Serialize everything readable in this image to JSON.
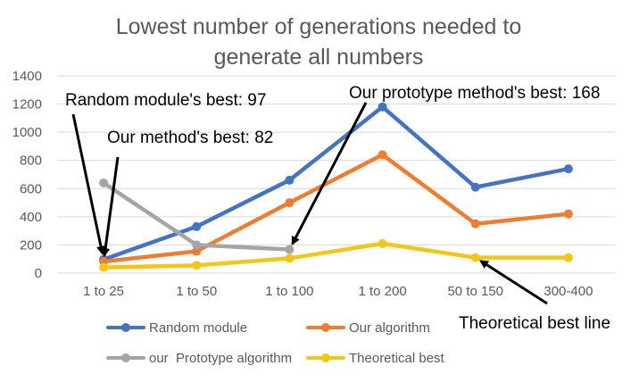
{
  "chart_data": {
    "type": "line",
    "title_lines": [
      "Lowest number of generations needed to",
      "generate all numbers"
    ],
    "categories": [
      "1 to 25",
      "1 to 50",
      "1 to 100",
      "1 to 200",
      "50 to 150",
      "300-400"
    ],
    "ylim": [
      0,
      1400
    ],
    "yticks": [
      0,
      200,
      400,
      600,
      800,
      1000,
      1200,
      1400
    ],
    "grid": true,
    "legend_position": "bottom",
    "series": [
      {
        "name": "Random module",
        "color": "#4472C4",
        "values": [
          97,
          330,
          660,
          1180,
          610,
          740
        ]
      },
      {
        "name": "Our algorithm",
        "color": "#ED7D31",
        "values": [
          82,
          155,
          500,
          840,
          350,
          420
        ]
      },
      {
        "name": "our  Prototype algorithm",
        "color": "#A5A5A5",
        "values": [
          640,
          200,
          168,
          null,
          null,
          null
        ]
      },
      {
        "name": "Theoretical best",
        "color": "#F5C518",
        "values": [
          40,
          55,
          105,
          210,
          110,
          110
        ]
      }
    ],
    "annotations": [
      {
        "text": "Random module's best: 97",
        "series": 0,
        "category": 0
      },
      {
        "text": "Our method's best: 82",
        "series": 1,
        "category": 0
      },
      {
        "text": "Our prototype method's best: 168",
        "series": 2,
        "category": 2
      },
      {
        "text": "Theoretical best line",
        "series": 3,
        "category": 4
      }
    ]
  }
}
